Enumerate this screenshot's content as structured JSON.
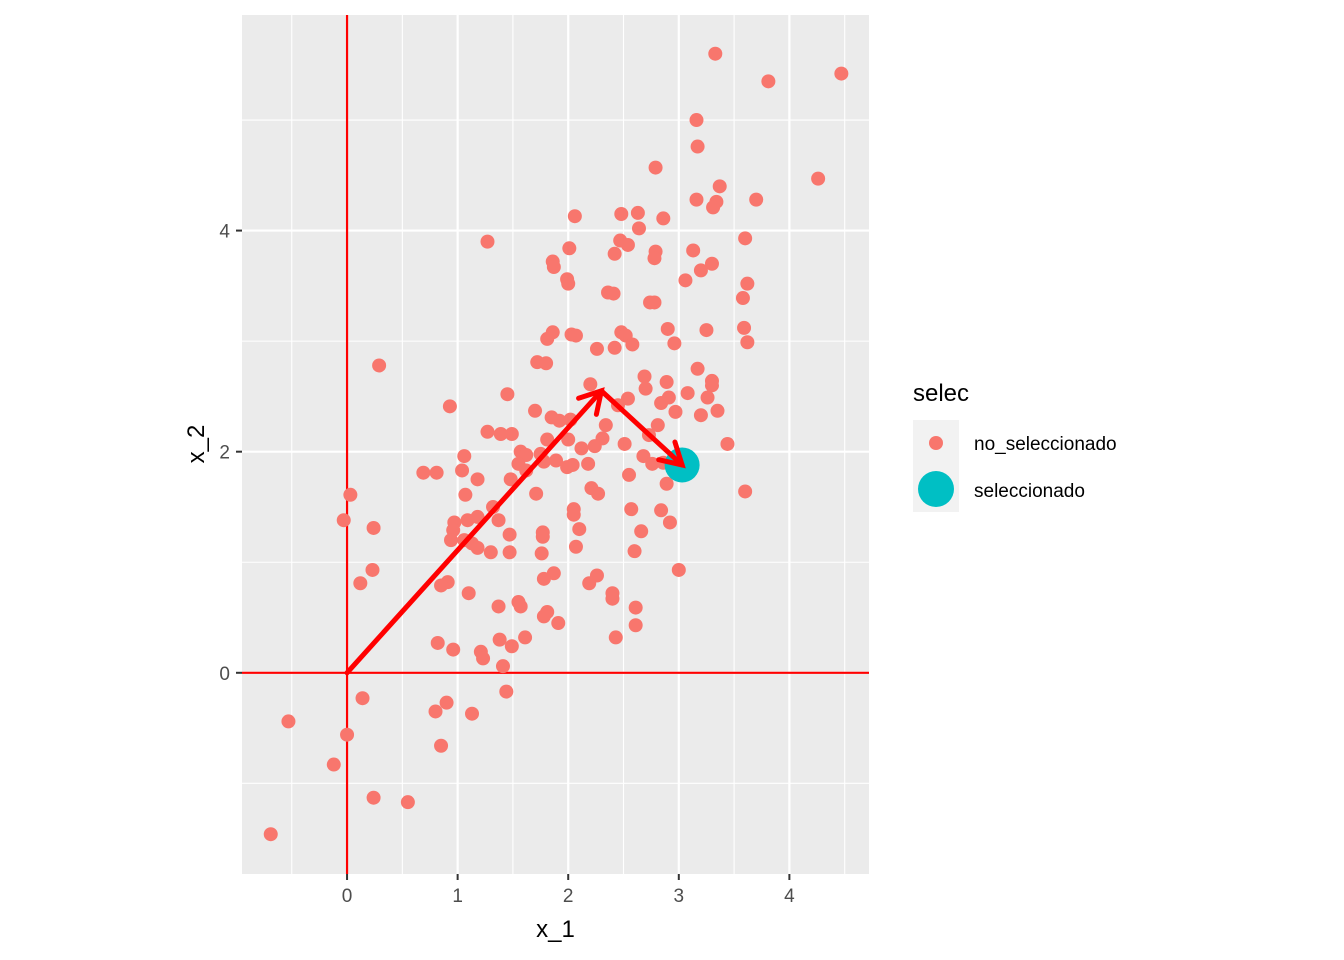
{
  "chart_data": {
    "type": "scatter",
    "xlabel": "x_1",
    "ylabel": "x_2",
    "xlim": [
      -0.95,
      4.72
    ],
    "ylim": [
      -1.82,
      5.95
    ],
    "x_ticks": [
      0,
      1,
      2,
      3,
      4
    ],
    "y_ticks": [
      0,
      2,
      4
    ],
    "grid": true,
    "legend": {
      "title": "selec",
      "placement": "right",
      "entries": [
        {
          "label": "no_seleccionado",
          "color": "#F8766D"
        },
        {
          "label": "seleccionado",
          "color": "#00BFC4"
        }
      ]
    },
    "colors": {
      "panel_background": "#EBEBEB",
      "grid": "#FFFFFF",
      "no_seleccionado": "#F8766D",
      "seleccionado": "#00BFC4",
      "reference_lines": "#FF0000",
      "arrows": "#FF0000"
    },
    "reference_lines": {
      "vline_x": 0,
      "hline_y": 0
    },
    "arrows": [
      {
        "from": [
          0,
          0
        ],
        "to": [
          2.3,
          2.55
        ]
      },
      {
        "from": [
          2.3,
          2.55
        ],
        "to": [
          3.03,
          1.88
        ]
      }
    ],
    "series": [
      {
        "name": "no_seleccionado",
        "points": [
          [
            3.33,
            5.6
          ],
          [
            3.81,
            5.35
          ],
          [
            4.47,
            5.42
          ],
          [
            3.16,
            5.0
          ],
          [
            3.17,
            4.76
          ],
          [
            2.79,
            4.57
          ],
          [
            4.26,
            4.47
          ],
          [
            3.37,
            4.4
          ],
          [
            3.34,
            4.26
          ],
          [
            3.31,
            4.21
          ],
          [
            3.7,
            4.28
          ],
          [
            3.16,
            4.28
          ],
          [
            2.86,
            4.11
          ],
          [
            2.48,
            4.15
          ],
          [
            2.63,
            4.16
          ],
          [
            2.06,
            4.13
          ],
          [
            2.64,
            4.02
          ],
          [
            1.27,
            3.9
          ],
          [
            2.47,
            3.91
          ],
          [
            2.54,
            3.87
          ],
          [
            3.6,
            3.93
          ],
          [
            2.01,
            3.84
          ],
          [
            2.42,
            3.79
          ],
          [
            2.79,
            3.81
          ],
          [
            3.13,
            3.82
          ],
          [
            2.78,
            3.75
          ],
          [
            3.3,
            3.7
          ],
          [
            1.86,
            3.72
          ],
          [
            1.87,
            3.67
          ],
          [
            3.2,
            3.64
          ],
          [
            1.99,
            3.56
          ],
          [
            2.0,
            3.52
          ],
          [
            3.06,
            3.55
          ],
          [
            3.62,
            3.52
          ],
          [
            2.36,
            3.44
          ],
          [
            2.41,
            3.43
          ],
          [
            3.58,
            3.39
          ],
          [
            2.74,
            3.35
          ],
          [
            2.78,
            3.35
          ],
          [
            3.59,
            3.12
          ],
          [
            3.25,
            3.1
          ],
          [
            2.9,
            3.11
          ],
          [
            1.86,
            3.08
          ],
          [
            2.03,
            3.06
          ],
          [
            2.07,
            3.05
          ],
          [
            2.48,
            3.08
          ],
          [
            2.52,
            3.05
          ],
          [
            1.81,
            3.02
          ],
          [
            2.58,
            2.97
          ],
          [
            2.96,
            2.98
          ],
          [
            3.62,
            2.99
          ],
          [
            2.26,
            2.93
          ],
          [
            2.42,
            2.94
          ],
          [
            1.72,
            2.81
          ],
          [
            1.8,
            2.8
          ],
          [
            0.29,
            2.78
          ],
          [
            3.17,
            2.75
          ],
          [
            2.69,
            2.68
          ],
          [
            3.3,
            2.64
          ],
          [
            2.89,
            2.63
          ],
          [
            3.3,
            2.6
          ],
          [
            2.2,
            2.61
          ],
          [
            2.7,
            2.57
          ],
          [
            3.08,
            2.53
          ],
          [
            2.91,
            2.49
          ],
          [
            3.26,
            2.49
          ],
          [
            2.54,
            2.48
          ],
          [
            1.45,
            2.52
          ],
          [
            2.84,
            2.44
          ],
          [
            2.45,
            2.42
          ],
          [
            0.93,
            2.41
          ],
          [
            1.7,
            2.37
          ],
          [
            2.97,
            2.36
          ],
          [
            3.35,
            2.37
          ],
          [
            1.85,
            2.31
          ],
          [
            1.92,
            2.28
          ],
          [
            2.02,
            2.29
          ],
          [
            3.2,
            2.33
          ],
          [
            2.34,
            2.24
          ],
          [
            2.81,
            2.24
          ],
          [
            1.27,
            2.18
          ],
          [
            1.39,
            2.16
          ],
          [
            1.49,
            2.16
          ],
          [
            2.73,
            2.15
          ],
          [
            2.31,
            2.12
          ],
          [
            1.81,
            2.11
          ],
          [
            2.0,
            2.11
          ],
          [
            2.51,
            2.07
          ],
          [
            3.44,
            2.07
          ],
          [
            2.24,
            2.05
          ],
          [
            2.12,
            2.03
          ],
          [
            1.57,
            2.0
          ],
          [
            1.62,
            1.97
          ],
          [
            1.06,
            1.96
          ],
          [
            1.75,
            1.98
          ],
          [
            1.89,
            1.92
          ],
          [
            2.68,
            1.96
          ],
          [
            1.78,
            1.91
          ],
          [
            2.18,
            1.89
          ],
          [
            1.55,
            1.89
          ],
          [
            1.99,
            1.86
          ],
          [
            2.04,
            1.88
          ],
          [
            2.76,
            1.89
          ],
          [
            2.86,
            1.9
          ],
          [
            1.62,
            1.83
          ],
          [
            0.69,
            1.81
          ],
          [
            0.81,
            1.81
          ],
          [
            1.04,
            1.83
          ],
          [
            2.55,
            1.79
          ],
          [
            1.48,
            1.75
          ],
          [
            1.18,
            1.75
          ],
          [
            2.89,
            1.71
          ],
          [
            2.21,
            1.67
          ],
          [
            0.03,
            1.61
          ],
          [
            1.07,
            1.61
          ],
          [
            2.27,
            1.62
          ],
          [
            1.71,
            1.62
          ],
          [
            3.6,
            1.64
          ],
          [
            1.32,
            1.5
          ],
          [
            2.05,
            1.48
          ],
          [
            2.57,
            1.48
          ],
          [
            2.84,
            1.47
          ],
          [
            2.05,
            1.43
          ],
          [
            1.18,
            1.41
          ],
          [
            1.09,
            1.38
          ],
          [
            1.37,
            1.38
          ],
          [
            -0.03,
            1.38
          ],
          [
            2.92,
            1.36
          ],
          [
            0.97,
            1.36
          ],
          [
            0.24,
            1.31
          ],
          [
            0.96,
            1.29
          ],
          [
            2.1,
            1.3
          ],
          [
            1.77,
            1.27
          ],
          [
            2.66,
            1.28
          ],
          [
            1.47,
            1.25
          ],
          [
            1.77,
            1.23
          ],
          [
            0.94,
            1.2
          ],
          [
            1.06,
            1.2
          ],
          [
            1.13,
            1.17
          ],
          [
            1.18,
            1.13
          ],
          [
            2.07,
            1.14
          ],
          [
            1.3,
            1.09
          ],
          [
            1.47,
            1.09
          ],
          [
            1.76,
            1.08
          ],
          [
            2.6,
            1.1
          ],
          [
            0.23,
            0.93
          ],
          [
            3.0,
            0.93
          ],
          [
            1.87,
            0.9
          ],
          [
            2.26,
            0.88
          ],
          [
            1.78,
            0.85
          ],
          [
            0.12,
            0.81
          ],
          [
            0.91,
            0.82
          ],
          [
            0.85,
            0.79
          ],
          [
            2.19,
            0.81
          ],
          [
            2.4,
            0.72
          ],
          [
            1.1,
            0.72
          ],
          [
            2.4,
            0.67
          ],
          [
            1.55,
            0.64
          ],
          [
            1.57,
            0.6
          ],
          [
            1.37,
            0.6
          ],
          [
            2.61,
            0.59
          ],
          [
            1.81,
            0.55
          ],
          [
            1.78,
            0.51
          ],
          [
            1.91,
            0.45
          ],
          [
            2.61,
            0.43
          ],
          [
            1.61,
            0.32
          ],
          [
            2.43,
            0.32
          ],
          [
            1.38,
            0.3
          ],
          [
            0.82,
            0.27
          ],
          [
            1.49,
            0.24
          ],
          [
            0.96,
            0.21
          ],
          [
            1.21,
            0.19
          ],
          [
            1.23,
            0.13
          ],
          [
            1.41,
            0.06
          ],
          [
            0.14,
            -0.23
          ],
          [
            1.44,
            -0.17
          ],
          [
            0.9,
            -0.27
          ],
          [
            0.8,
            -0.35
          ],
          [
            1.13,
            -0.37
          ],
          [
            -0.53,
            -0.44
          ],
          [
            0.0,
            -0.56
          ],
          [
            0.85,
            -0.66
          ],
          [
            -0.12,
            -0.83
          ],
          [
            -0.69,
            -1.46
          ],
          [
            0.24,
            -1.13
          ],
          [
            0.55,
            -1.17
          ]
        ]
      },
      {
        "name": "seleccionado",
        "points": [
          [
            3.03,
            1.88
          ]
        ]
      }
    ]
  }
}
